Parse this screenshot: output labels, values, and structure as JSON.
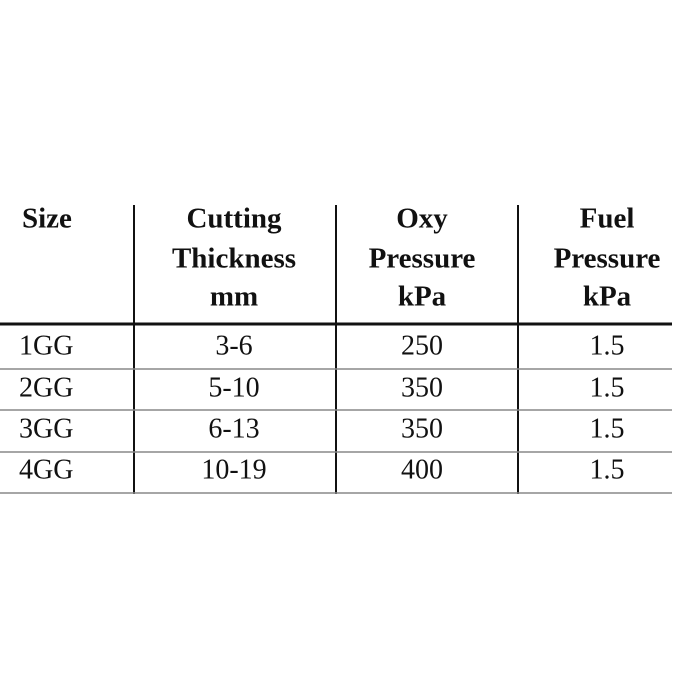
{
  "table": {
    "header": [
      [
        "Size"
      ],
      [
        "Cutting",
        "Thickness",
        "mm"
      ],
      [
        "Oxy",
        "Pressure",
        "kPa"
      ],
      [
        "Fuel",
        "Pressure",
        "kPa"
      ]
    ],
    "rows": [
      [
        "1GG",
        "3-6",
        "250",
        "1.5"
      ],
      [
        "2GG",
        "5-10",
        "350",
        "1.5"
      ],
      [
        "3GG",
        "6-13",
        "350",
        "1.5"
      ],
      [
        "4GG",
        "10-19",
        "400",
        "1.5"
      ]
    ]
  }
}
